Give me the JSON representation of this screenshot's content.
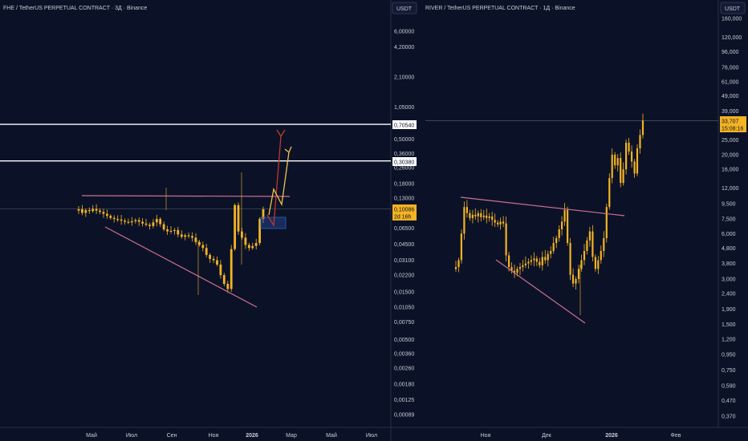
{
  "colors": {
    "background": "#0b1228",
    "separator": "#2a3045",
    "text": "#c8cbd4",
    "candle": "#f3b323",
    "level_line": "#ffffff",
    "pattern_line": "#cf6f8f",
    "arrow_red": "#c0392b",
    "arrow_yellow": "#f0c24a",
    "box": "#2f5fbf",
    "last_price_bg": "#f3b323"
  },
  "left": {
    "title": "FHE / TetherUS PERPETUAL CONTRACT · 3Д · Binance",
    "currency_button": "USDT",
    "price_ticks": [
      "6,00000",
      "4,20000",
      "2,10000",
      "1,05000",
      "0,50000",
      "0,36000",
      "0,26000",
      "0,18000",
      "0,13000",
      "0,06500",
      "0,04500",
      "0,03100",
      "0,02200",
      "0,01500",
      "0,01050",
      "0,00750",
      "0,00500",
      "0,00360",
      "0,00260",
      "0,00180",
      "0,00125",
      "0,00089"
    ],
    "time_ticks": [
      "Май",
      "Июл",
      "Сен",
      "Ноя",
      "2026",
      "Мар",
      "Май",
      "Июл"
    ],
    "level_labels": [
      "0,70540",
      "0,30380"
    ],
    "last_price": "0,10086",
    "countdown": "2d 16h"
  },
  "right": {
    "title": "RIVER / TetherUS PERPETUAL CONTRACT · 1Д · Binance",
    "currency_button": "USDT",
    "price_ticks": [
      "160,000",
      "120,000",
      "96,000",
      "76,000",
      "61,000",
      "49,000",
      "39,000",
      "25,000",
      "20,000",
      "16,000",
      "12,000",
      "9,500",
      "7,500",
      "6,000",
      "4,800",
      "3,800",
      "3,000",
      "2,400",
      "1,900",
      "1,500",
      "1,200",
      "0,950",
      "0,750",
      "0,590",
      "0,470",
      "0,370"
    ],
    "time_ticks": [
      "Ноя",
      "Дек",
      "2026",
      "Фев"
    ],
    "last_price": "33,707",
    "countdown": "15:08:16"
  },
  "chart_data": [
    {
      "type": "candlestick",
      "title": "FHE / TetherUS PERPETUAL CONTRACT · 3Д · Binance",
      "scale": "log",
      "ylim": [
        0.0007,
        9.0
      ],
      "xlabel": "",
      "ylabel": "",
      "x_ticks": [
        "Май",
        "Июл",
        "Сен",
        "Ноя",
        "2026",
        "Мар",
        "Май",
        "Июл"
      ],
      "horizontal_levels": [
        0.7054,
        0.3038
      ],
      "last_price": 0.10086,
      "close_series": [
        0.1,
        0.092,
        0.098,
        0.096,
        0.101,
        0.097,
        0.094,
        0.09,
        0.086,
        0.082,
        0.08,
        0.079,
        0.077,
        0.075,
        0.074,
        0.076,
        0.078,
        0.075,
        0.072,
        0.07,
        0.068,
        0.074,
        0.08,
        0.071,
        0.063,
        0.06,
        0.061,
        0.062,
        0.056,
        0.053,
        0.055,
        0.054,
        0.052,
        0.047,
        0.044,
        0.041,
        0.035,
        0.032,
        0.031,
        0.028,
        0.022,
        0.018,
        0.016,
        0.04,
        0.11,
        0.06,
        0.052,
        0.044,
        0.041,
        0.043,
        0.046,
        0.08,
        0.1
      ]
    },
    {
      "type": "candlestick",
      "title": "RIVER / TetherUS PERPETUAL CONTRACT · 1Д · Binance",
      "scale": "log",
      "ylim": [
        0.3,
        190
      ],
      "xlabel": "",
      "ylabel": "",
      "x_ticks": [
        "Ноя",
        "Дек",
        "2026",
        "Фев"
      ],
      "last_price": 33.707,
      "close_series": [
        3.6,
        4.0,
        6.0,
        9.0,
        8.2,
        7.6,
        8.0,
        7.8,
        8.2,
        7.7,
        7.9,
        7.6,
        7.8,
        7.4,
        7.1,
        6.9,
        7.2,
        7.0,
        4.3,
        3.6,
        3.4,
        3.3,
        3.5,
        3.6,
        3.7,
        3.8,
        3.9,
        4.0,
        4.1,
        3.9,
        3.7,
        4.2,
        4.0,
        4.4,
        4.6,
        5.2,
        5.6,
        6.4,
        7.2,
        8.6,
        5.2,
        3.2,
        2.8,
        3.0,
        3.5,
        4.0,
        4.6,
        5.4,
        6.2,
        4.2,
        3.5,
        4.0,
        4.6,
        5.6,
        9.0,
        14.0,
        20.0,
        17.0,
        19.0,
        13.0,
        16.0,
        24.0,
        21.0,
        18.0,
        15.0,
        22.0,
        27.0,
        33.7
      ]
    }
  ]
}
